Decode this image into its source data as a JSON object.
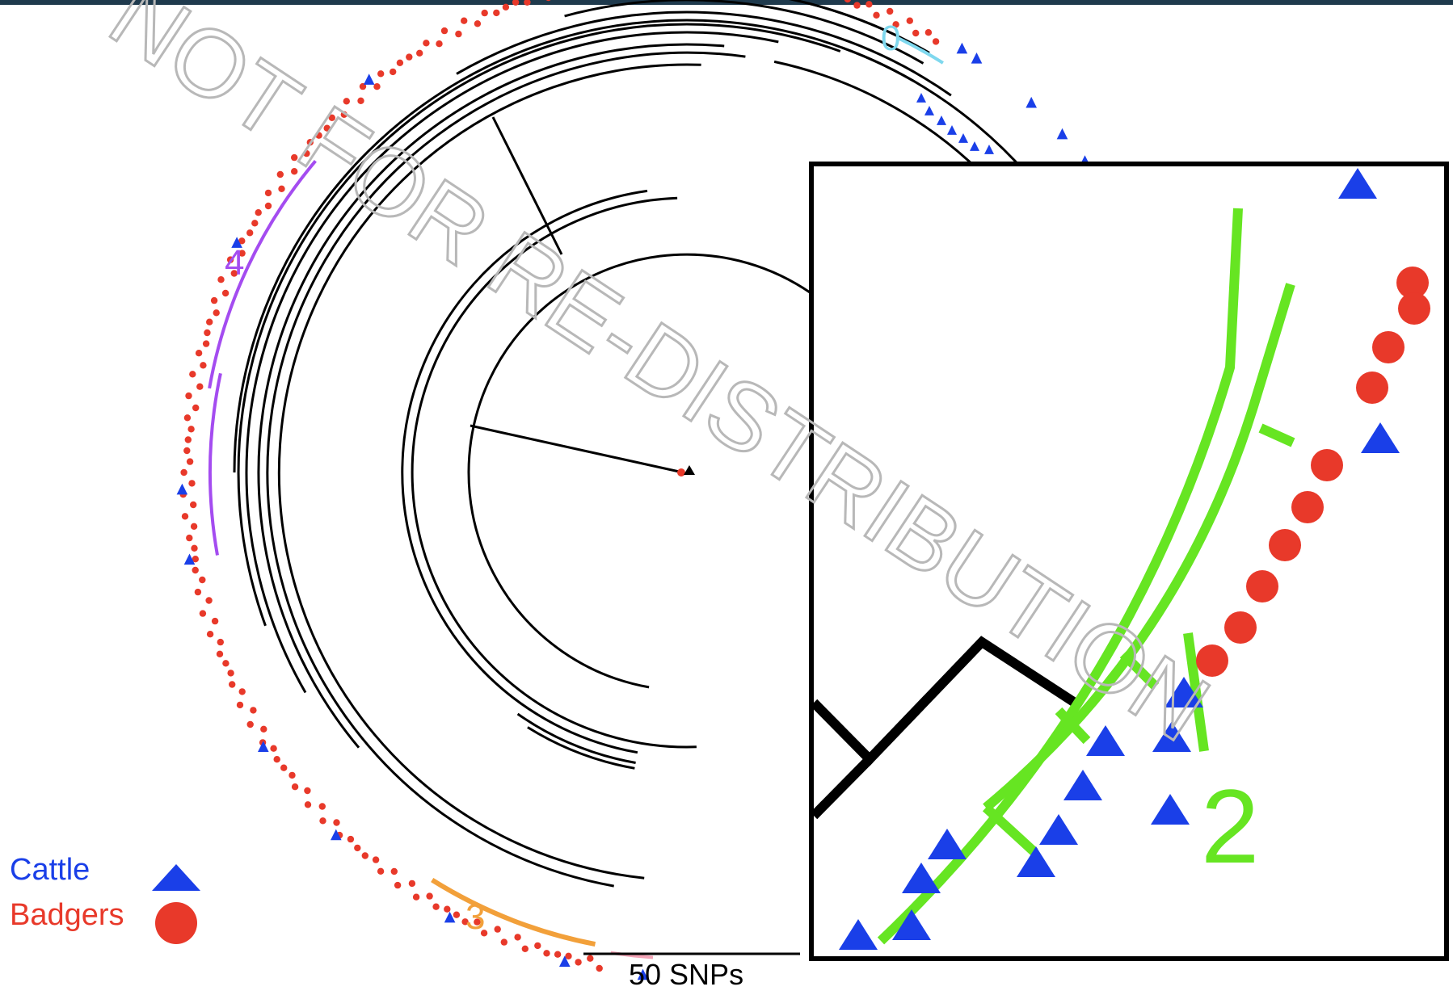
{
  "legend": {
    "cattle_label": "Cattle",
    "badger_label": "Badgers",
    "cattle_color": "#1a3fe8",
    "badger_color": "#e8392a",
    "cattle_icon": "blue-triangle-icon",
    "badger_icon": "red-circle-icon"
  },
  "clusters": {
    "c0": {
      "label": "0",
      "color": "#7fd8ee"
    },
    "c2": {
      "label": "2",
      "color": "#66e522"
    },
    "c3": {
      "label": "3",
      "color": "#f2a03a"
    },
    "c4": {
      "label": "4",
      "color": "#a44cf0"
    },
    "pink_color": "#f4a3b6"
  },
  "scale_bar": {
    "label": "50 SNPs"
  },
  "watermark": {
    "text": "NOT FOR RE-DISTRIBUTION",
    "color": "#b8b8b8"
  },
  "tree_line_color": "#000000"
}
